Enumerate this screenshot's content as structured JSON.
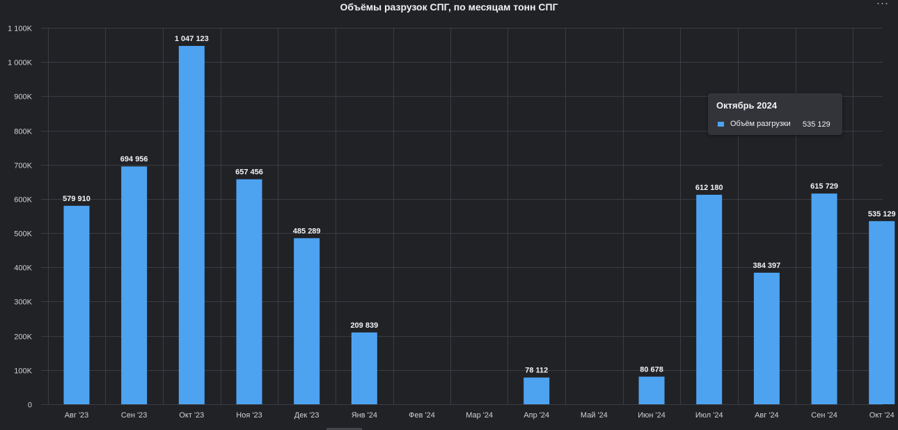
{
  "header": {
    "title": "Объёмы разрузок СПГ, по месяцам тонн СПГ",
    "menu_icon": "more-horizontal-icon"
  },
  "colors": {
    "bar": "#4ea3f1",
    "grid": "#3b3d43",
    "background": "#212226"
  },
  "chart_data": {
    "type": "bar",
    "title": "Объёмы разрузок СПГ, по месяцам тонн СПГ",
    "xlabel": "",
    "ylabel": "",
    "categories": [
      "Авг '23",
      "Сен '23",
      "Окт '23",
      "Ноя '23",
      "Дек '23",
      "Янв '24",
      "Фев '24",
      "Мар '24",
      "Апр '24",
      "Май '24",
      "Июн '24",
      "Июл '24",
      "Авг '24",
      "Сен '24",
      "Окт '24"
    ],
    "series": [
      {
        "name": "Объём разгрузки",
        "values": [
          579910,
          694956,
          1047123,
          657456,
          485289,
          209839,
          null,
          null,
          78112,
          null,
          80678,
          612180,
          384397,
          615729,
          535129
        ]
      }
    ],
    "data_labels": [
      "579 910",
      "694 956",
      "1 047 123",
      "657 456",
      "485 289",
      "209 839",
      "",
      "",
      "78 112",
      "",
      "80 678",
      "612 180",
      "384 397",
      "615 729",
      "535 129"
    ],
    "ylim": [
      0,
      1100000
    ],
    "yticks": [
      0,
      100000,
      200000,
      300000,
      400000,
      500000,
      600000,
      700000,
      800000,
      900000,
      1000000,
      1100000
    ],
    "ytick_labels": [
      "0",
      "100K",
      "200K",
      "300K",
      "400K",
      "500K",
      "600K",
      "700K",
      "800K",
      "900K",
      "1 000K",
      "1 100K"
    ],
    "grid": true,
    "legend": "none"
  },
  "tooltip": {
    "title": "Октябрь 2024",
    "series": "Объём разгрузки",
    "value": "535 129"
  }
}
